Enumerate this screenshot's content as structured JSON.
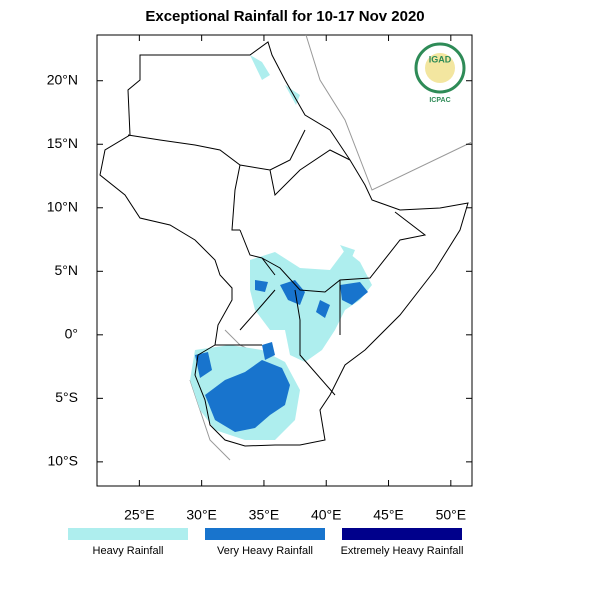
{
  "map": {
    "title": "Exceptional Rainfall for 10-17 Nov 2020",
    "xlim": [
      21.6,
      51.7
    ],
    "ylim": [
      -11.9,
      23.6
    ],
    "xticks": [
      {
        "value": 25,
        "label": "25°E"
      },
      {
        "value": 30,
        "label": "30°E"
      },
      {
        "value": 35,
        "label": "35°E"
      },
      {
        "value": 40,
        "label": "40°E"
      },
      {
        "value": 45,
        "label": "45°E"
      },
      {
        "value": 50,
        "label": "50°E"
      }
    ],
    "yticks": [
      {
        "value": 20,
        "label": "20°N"
      },
      {
        "value": 15,
        "label": "15°N"
      },
      {
        "value": 10,
        "label": "10°N"
      },
      {
        "value": 5,
        "label": "5°N"
      },
      {
        "value": 0,
        "label": "0°"
      },
      {
        "value": -5,
        "label": "5°S"
      },
      {
        "value": -10,
        "label": "10°S"
      }
    ],
    "legend": [
      {
        "name": "Heavy Rainfall",
        "color": "#aeeeee"
      },
      {
        "name": "Very Heavy Rainfall",
        "color": "#1874cd"
      },
      {
        "name": "Extremely Heavy Rainfall",
        "color": "#00008b"
      }
    ],
    "logo": {
      "name": "IGAD",
      "caption": "ICPAC"
    }
  }
}
